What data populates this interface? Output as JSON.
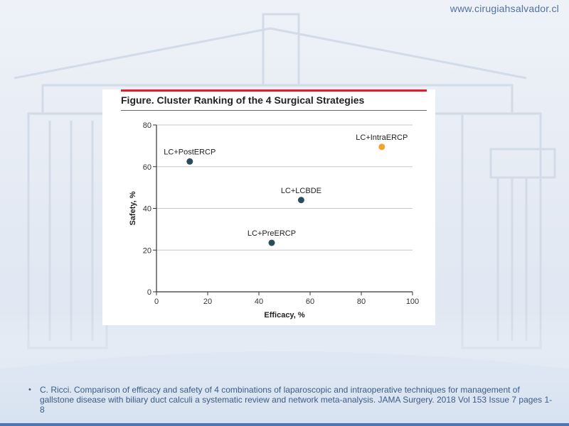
{
  "site_url": "www.cirugiahsalvador.cl",
  "figure_title": "Figure. Cluster Ranking of the 4 Surgical Strategies",
  "reference_text": "C. Ricci. Comparison of efficacy and safety of 4 combinations of laparoscopic and intraoperative techniques for management of gallstone disease with biliary duct calculi a systematic review and network  meta-analysis. JAMA Surgery.  2018 Vol 153 Issue 7 pages 1-8",
  "chart_data": {
    "type": "scatter",
    "title": "Figure. Cluster Ranking of the 4 Surgical Strategies",
    "xlabel": "Efficacy, %",
    "ylabel": "Safety, %",
    "xlim": [
      0,
      100
    ],
    "ylim": [
      0,
      80
    ],
    "xticks": [
      0,
      20,
      40,
      60,
      80,
      100
    ],
    "yticks": [
      0,
      20,
      40,
      60,
      80
    ],
    "grid": "horizontal",
    "points": [
      {
        "label": "LC+PostERCP",
        "x": 13,
        "y": 62.5,
        "color": "#2a4d5e"
      },
      {
        "label": "LC+IntraERCP",
        "x": 88,
        "y": 69.5,
        "color": "#f5a233"
      },
      {
        "label": "LC+LCBDE",
        "x": 56.5,
        "y": 44,
        "color": "#2a4d5e"
      },
      {
        "label": "LC+PreERCP",
        "x": 45,
        "y": 23.5,
        "color": "#2a4d5e"
      }
    ]
  }
}
